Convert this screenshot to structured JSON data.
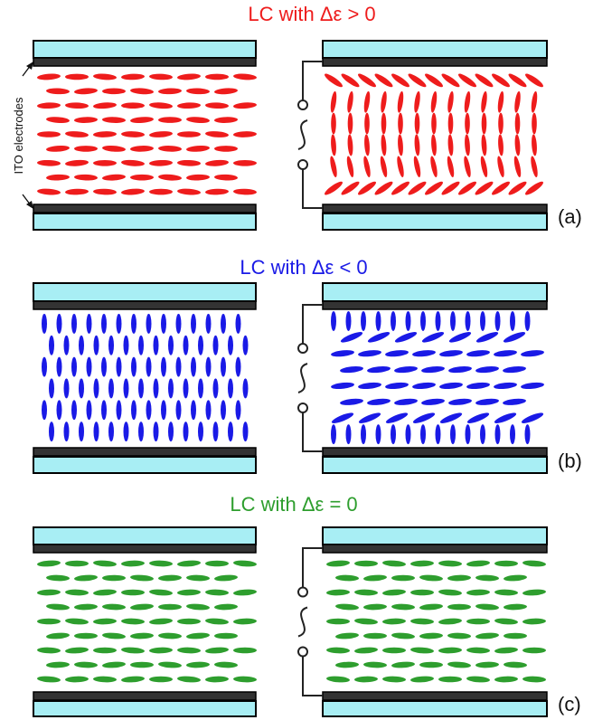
{
  "electrode_label": "ITO electrodes",
  "colors": {
    "glass_fill": "#a8eef4",
    "electrode": "#333333",
    "wire": "#222222",
    "positive": "#ee1c1c",
    "negative": "#1a1ae6",
    "zero": "#2e9e2e"
  },
  "panels": [
    {
      "id": "a",
      "title": "LC with Δε > 0",
      "label": "(a)",
      "color_key": "positive"
    },
    {
      "id": "b",
      "title": "LC with Δε < 0",
      "label": "(b)",
      "color_key": "negative"
    },
    {
      "id": "c",
      "title": "LC with Δε = 0",
      "label": "(c)",
      "color_key": "zero"
    }
  ]
}
